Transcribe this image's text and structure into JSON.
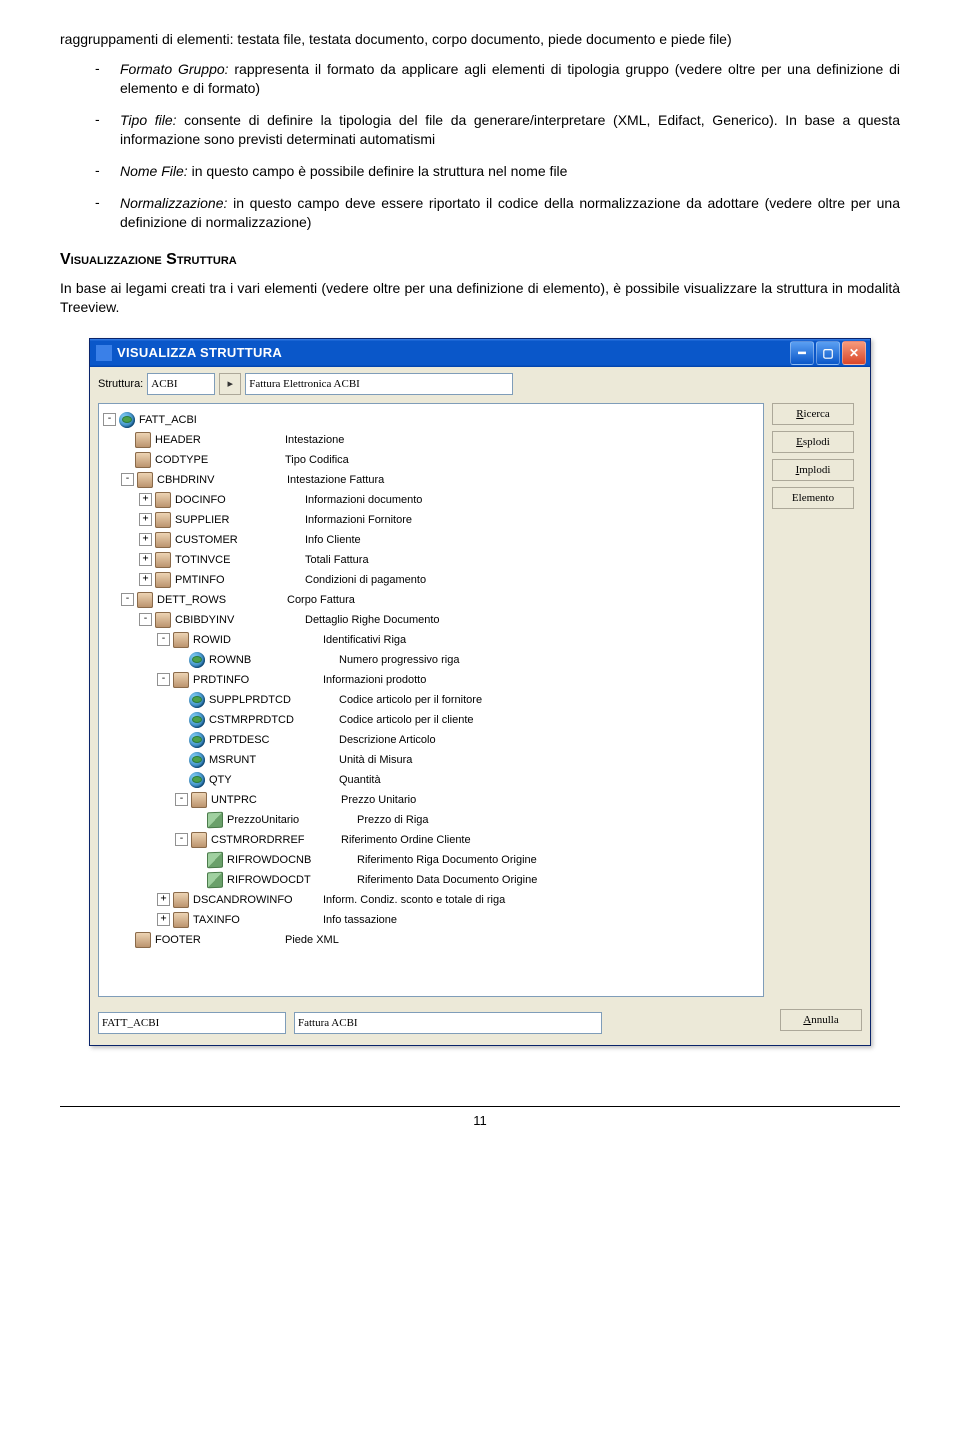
{
  "doc": {
    "intro": "raggruppamenti di elementi: testata file, testata documento, corpo documento, piede documento e piede file)",
    "bullets": [
      {
        "term": "Formato Gruppo:",
        "rest": " rappresenta il formato da applicare agli elementi di tipologia gruppo (vedere oltre per una definizione di elemento e di formato)"
      },
      {
        "term": "Tipo file:",
        "rest": " consente di definire la tipologia del file da generare/interpretare (XML, Edifact, Generico). In base a questa informazione sono previsti determinati automatismi"
      },
      {
        "term": "Nome File:",
        "rest": " in questo campo è possibile definire la struttura nel nome file"
      },
      {
        "term": "Normalizzazione:",
        "rest": " in questo campo deve essere riportato il codice della normalizzazione da adottare (vedere oltre per una definizione di normalizzazione)"
      }
    ],
    "heading": "Visualizzazione Struttura",
    "afterHeading": "In base ai legami creati tra i vari elementi (vedere oltre per una definizione di elemento), è possibile visualizzare la struttura in modalità Treeview.",
    "pageNumber": "11"
  },
  "win": {
    "title": "VISUALIZZA STRUTTURA",
    "label_struttura": "Struttura:",
    "struttura_value": "ACBI",
    "struttura_desc": "Fattura Elettronica ACBI",
    "btn_ricerca": "Ricerca",
    "btn_ricerca_u": "R",
    "btn_esplodi": "Esplodi",
    "btn_esplodi_u": "E",
    "btn_implodi": "Implodi",
    "btn_implodi_u": "I",
    "btn_elemento": "Elemento",
    "btn_elemento_u": "",
    "btn_annulla": "Annulla",
    "btn_annulla_u": "A",
    "footer_code": "FATT_ACBI",
    "footer_desc": "Fattura ACBI",
    "tree": [
      {
        "indent": 0,
        "toggle": "-",
        "icon": "globe",
        "code": "FATT_ACBI",
        "desc": ""
      },
      {
        "indent": 1,
        "toggle": "",
        "icon": "brick",
        "code": "HEADER",
        "desc": "Intestazione"
      },
      {
        "indent": 1,
        "toggle": "",
        "icon": "brick",
        "code": "CODTYPE",
        "desc": "Tipo Codifica"
      },
      {
        "indent": 1,
        "toggle": "-",
        "icon": "brick",
        "code": "CBHDRINV",
        "desc": "Intestazione Fattura"
      },
      {
        "indent": 2,
        "toggle": "+",
        "icon": "brick",
        "code": "DOCINFO",
        "desc": "Informazioni documento"
      },
      {
        "indent": 2,
        "toggle": "+",
        "icon": "brick",
        "code": "SUPPLIER",
        "desc": "Informazioni Fornitore"
      },
      {
        "indent": 2,
        "toggle": "+",
        "icon": "brick",
        "code": "CUSTOMER",
        "desc": "Info Cliente"
      },
      {
        "indent": 2,
        "toggle": "+",
        "icon": "brick",
        "code": "TOTINVCE",
        "desc": "Totali Fattura"
      },
      {
        "indent": 2,
        "toggle": "+",
        "icon": "brick",
        "code": "PMTINFO",
        "desc": "Condizioni di pagamento"
      },
      {
        "indent": 1,
        "toggle": "-",
        "icon": "brick",
        "code": "DETT_ROWS",
        "desc": "Corpo Fattura"
      },
      {
        "indent": 2,
        "toggle": "-",
        "icon": "brick",
        "code": "CBIBDYINV",
        "desc": "Dettaglio Righe Documento"
      },
      {
        "indent": 3,
        "toggle": "-",
        "icon": "brick",
        "code": "ROWID",
        "desc": "Identificativi Riga"
      },
      {
        "indent": 4,
        "toggle": "",
        "icon": "globe",
        "code": "ROWNB",
        "desc": "Numero progressivo riga"
      },
      {
        "indent": 3,
        "toggle": "-",
        "icon": "brick",
        "code": "PRDTINFO",
        "desc": "Informazioni prodotto"
      },
      {
        "indent": 4,
        "toggle": "",
        "icon": "globe",
        "code": "SUPPLPRDTCD",
        "desc": "Codice articolo per il fornitore"
      },
      {
        "indent": 4,
        "toggle": "",
        "icon": "globe",
        "code": "CSTMRPRDTCD",
        "desc": "Codice articolo per il cliente"
      },
      {
        "indent": 4,
        "toggle": "",
        "icon": "globe",
        "code": "PRDTDESC",
        "desc": "Descrizione Articolo"
      },
      {
        "indent": 4,
        "toggle": "",
        "icon": "globe",
        "code": "MSRUNT",
        "desc": "Unità di Misura"
      },
      {
        "indent": 4,
        "toggle": "",
        "icon": "globe",
        "code": "QTY",
        "desc": "Quantità"
      },
      {
        "indent": 4,
        "toggle": "-",
        "icon": "brick",
        "code": "UNTPRC",
        "desc": "Prezzo Unitario"
      },
      {
        "indent": 5,
        "toggle": "",
        "icon": "cube",
        "code": "PrezzoUnitario",
        "desc": "Prezzo di Riga"
      },
      {
        "indent": 4,
        "toggle": "-",
        "icon": "brick",
        "code": "CSTMRORDRREF",
        "desc": "Riferimento Ordine Cliente"
      },
      {
        "indent": 5,
        "toggle": "",
        "icon": "cube",
        "code": "RIFROWDOCNB",
        "desc": "Riferimento Riga Documento Origine"
      },
      {
        "indent": 5,
        "toggle": "",
        "icon": "cube",
        "code": "RIFROWDOCDT",
        "desc": "Riferimento Data Documento Origine"
      },
      {
        "indent": 3,
        "toggle": "+",
        "icon": "brick",
        "code": "DSCANDROWINFO",
        "desc": "Inform. Condiz. sconto e totale di riga"
      },
      {
        "indent": 3,
        "toggle": "+",
        "icon": "brick",
        "code": "TAXINFO",
        "desc": "Info tassazione"
      },
      {
        "indent": 1,
        "toggle": "",
        "icon": "brick",
        "code": "FOOTER",
        "desc": "Piede XML"
      }
    ]
  }
}
